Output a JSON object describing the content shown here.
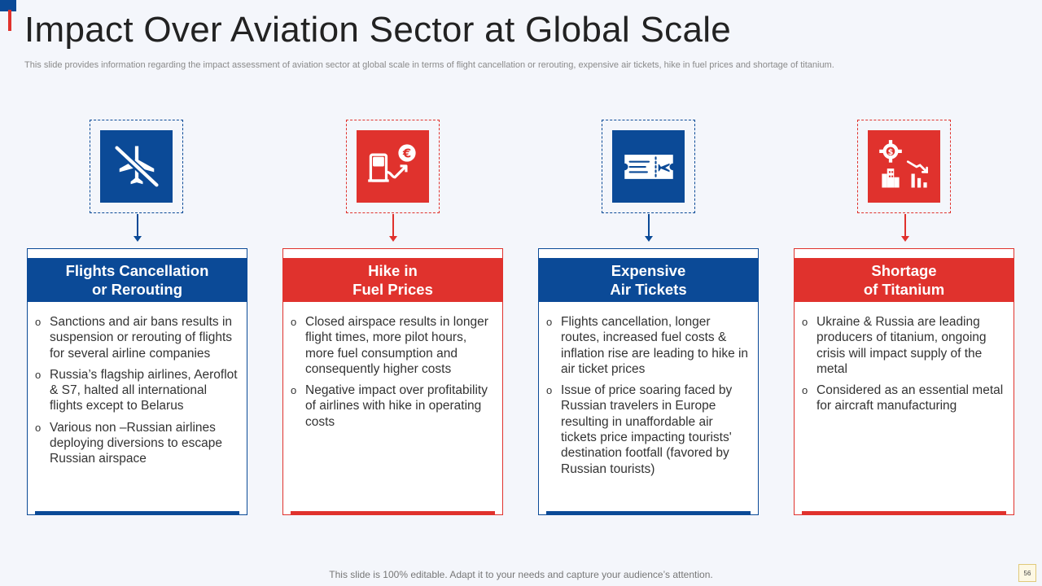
{
  "slide": {
    "title": "Impact Over Aviation Sector at Global Scale",
    "subtitle": "This slide provides information regarding the impact assessment of aviation sector at global scale in terms of flight cancellation or rerouting, expensive air tickets, hike in fuel prices and shortage of titanium.",
    "footer": "This slide is 100% editable. Adapt it to your needs and capture your audience’s attention.",
    "page_number": "56"
  },
  "colors": {
    "blue": "#0b4a97",
    "red": "#e0322d"
  },
  "cards": [
    {
      "icon": "airplane-off-icon",
      "color": "blue",
      "title_line1": "Flights Cancellation",
      "title_line2": "or Rerouting",
      "bullets": [
        "Sanctions and air bans results in suspension or rerouting of flights for several airline companies",
        "Russia’s flagship airlines, Aeroflot & S7, halted all international flights except to Belarus",
        "Various non –Russian airlines deploying diversions to escape Russian airspace"
      ]
    },
    {
      "icon": "fuel-pump-euro-icon",
      "color": "red",
      "title_line1": "Hike in",
      "title_line2": "Fuel Prices",
      "bullets": [
        "Closed airspace results in longer flight times, more pilot hours, more fuel consumption and consequently  higher costs",
        "Negative impact over profitability of airlines with hike in operating costs"
      ]
    },
    {
      "icon": "air-ticket-icon",
      "color": "blue",
      "title_line1": "Expensive",
      "title_line2": "Air Tickets",
      "bullets": [
        "Flights cancellation, longer routes, increased fuel costs & inflation rise are leading to hike in air ticket prices",
        "Issue  of price soaring faced by Russian travelers  in Europe resulting  in unaffordable air tickets price impacting tourists' destination footfall  (favored by Russian tourists)"
      ]
    },
    {
      "icon": "industry-decline-icon",
      "color": "red",
      "title_line1": "Shortage",
      "title_line2": "of Titanium",
      "bullets": [
        "Ukraine & Russia are leading producers of titanium, ongoing crisis will impact supply of the metal",
        "Considered as an essential metal for aircraft manufacturing"
      ]
    }
  ]
}
